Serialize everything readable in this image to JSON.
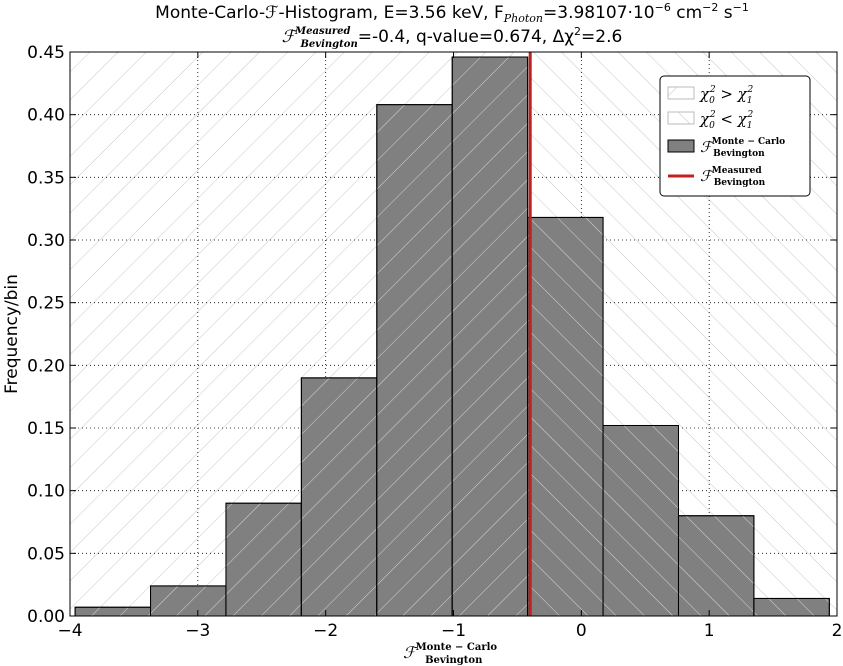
{
  "chart_data": {
    "type": "bar",
    "title_line1": "Monte-Carlo-ℱ-Histogram, E=3.56 keV, F",
    "title_line1_sub": "Photon",
    "title_line1_tail": "=3.98107·10",
    "title_line1_exp": "−6",
    "title_line1_unit": " cm",
    "title_line1_unit_exp": "−2",
    "title_line1_unit2": " s",
    "title_line1_unit2_exp": "−1",
    "title_line2_sym": "ℱ",
    "title_line2_sup": "Measured",
    "title_line2_sub": "Bevington",
    "title_line2_tail": "=-0.4, q-value=0.674, Δχ",
    "title_line2_exp": "2",
    "title_line2_end": "=2.6",
    "ylabel": "Frequency/bin",
    "xlabel_sym": "ℱ",
    "xlabel_sup": "Monte − Carlo",
    "xlabel_sub": "Bevington",
    "xlim": [
      -4.0,
      2.0
    ],
    "ylim": [
      0.0,
      0.45
    ],
    "xticks": [
      -4,
      -3,
      -2,
      -1,
      0,
      1,
      2
    ],
    "xtick_labels": [
      "−4",
      "−3",
      "−2",
      "−1",
      "0",
      "1",
      "2"
    ],
    "yticks": [
      0.0,
      0.05,
      0.1,
      0.15,
      0.2,
      0.25,
      0.3,
      0.35,
      0.4,
      0.45
    ],
    "ytick_labels": [
      "0.00",
      "0.05",
      "0.10",
      "0.15",
      "0.20",
      "0.25",
      "0.30",
      "0.35",
      "0.40",
      "0.45"
    ],
    "grid": true,
    "bins": [
      {
        "x0": -3.96,
        "x1": -3.37,
        "value": 0.007
      },
      {
        "x0": -3.37,
        "x1": -2.78,
        "value": 0.024
      },
      {
        "x0": -2.78,
        "x1": -2.19,
        "value": 0.09
      },
      {
        "x0": -2.19,
        "x1": -1.6,
        "value": 0.19
      },
      {
        "x0": -1.6,
        "x1": -1.01,
        "value": 0.408
      },
      {
        "x0": -1.01,
        "x1": -0.42,
        "value": 0.446
      },
      {
        "x0": -0.42,
        "x1": 0.17,
        "value": 0.318
      },
      {
        "x0": 0.17,
        "x1": 0.76,
        "value": 0.152
      },
      {
        "x0": 0.76,
        "x1": 1.35,
        "value": 0.08
      },
      {
        "x0": 1.35,
        "x1": 1.94,
        "value": 0.014
      }
    ],
    "measured_value": -0.4,
    "region_split": -0.4,
    "legend_position": "upper right",
    "legend": [
      {
        "kind": "hatch-left",
        "label": "χ",
        "sub1": "0",
        "sup1": "2",
        "op": " > ",
        "label2": "χ",
        "sub2": "1",
        "sup2": "2"
      },
      {
        "kind": "hatch-right",
        "label": "χ",
        "sub1": "0",
        "sup1": "2",
        "op": " < ",
        "label2": "χ",
        "sub2": "1",
        "sup2": "2"
      },
      {
        "kind": "bar",
        "label": "ℱ",
        "sup": "Monte − Carlo",
        "sub": "Bevington"
      },
      {
        "kind": "line",
        "label": "ℱ",
        "sup": "Measured",
        "sub": "Bevington"
      }
    ],
    "colors": {
      "bar": "#808080",
      "bar_edge": "#000000",
      "measured_line": "#c0201f",
      "hatch": "#c8c8c8",
      "grid": "#000000"
    }
  }
}
